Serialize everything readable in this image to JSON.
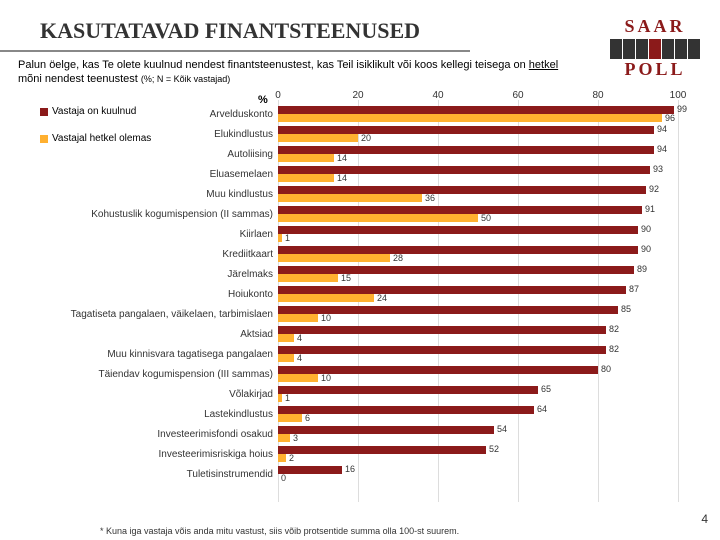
{
  "title": "KASUTATAVAD FINANTSTEENUSED",
  "subtitle_prefix": "Palun öelge, kas Te olete kuulnud nendest finantsteenustest, kas Teil isiklikult või koos kellegi teisega on ",
  "subtitle_u": "hetkel",
  "subtitle_suffix": " mõni nendest teenustest ",
  "subtitle_note": "(%; N = Kõik vastajad)",
  "pct_label": "%",
  "legend": {
    "s1": "Vastaja on kuulnud",
    "s2": "Vastajal hetkel olemas"
  },
  "axis": {
    "min": 0,
    "max": 100,
    "ticks": [
      0,
      20,
      40,
      60,
      80,
      100
    ]
  },
  "colors": {
    "s1": "#8b1a1a",
    "s2": "#ffb030",
    "grid": "#dddddd",
    "bg": "#ffffff"
  },
  "footnote": "* Kuna iga vastaja võis anda mitu vastust, siis võib protsentide summa olla 100-st suurem.",
  "pagenum": "4",
  "rows": [
    {
      "label": "Arvelduskonto",
      "v1": 99,
      "v2": 96
    },
    {
      "label": "Elukindlustus",
      "v1": 94,
      "v2": 20
    },
    {
      "label": "Autoliising",
      "v1": 94,
      "v2": 14
    },
    {
      "label": "Eluasemelaen",
      "v1": 93,
      "v2": 14
    },
    {
      "label": "Muu kindlustus",
      "v1": 92,
      "v2": 36
    },
    {
      "label": "Kohustuslik kogumispension (II sammas)",
      "v1": 91,
      "v2": 50
    },
    {
      "label": "Kiirlaen",
      "v1": 90,
      "v2": 1
    },
    {
      "label": "Krediitkaart",
      "v1": 90,
      "v2": 28
    },
    {
      "label": "Järelmaks",
      "v1": 89,
      "v2": 15
    },
    {
      "label": "Hoiukonto",
      "v1": 87,
      "v2": 24
    },
    {
      "label": "Tagatiseta pangalaen, väikelaen, tarbimislaen",
      "v1": 85,
      "v2": 10
    },
    {
      "label": "Aktsiad",
      "v1": 82,
      "v2": 4
    },
    {
      "label": "Muu kinnisvara tagatisega pangalaen",
      "v1": 82,
      "v2": 4
    },
    {
      "label": "Täiendav kogumispension (III sammas)",
      "v1": 80,
      "v2": 10
    },
    {
      "label": "Võlakirjad",
      "v1": 65,
      "v2": 1
    },
    {
      "label": "Lastekindlustus",
      "v1": 64,
      "v2": 6
    },
    {
      "label": "Investeerimisfondi osakud",
      "v1": 54,
      "v2": 3
    },
    {
      "label": "Investeerimisriskiga hoius",
      "v1": 52,
      "v2": 2
    },
    {
      "label": "Tuletisinstrumendid",
      "v1": 16,
      "v2": 0
    }
  ],
  "logo": {
    "line1": "SAAR",
    "line2": "POLL"
  }
}
